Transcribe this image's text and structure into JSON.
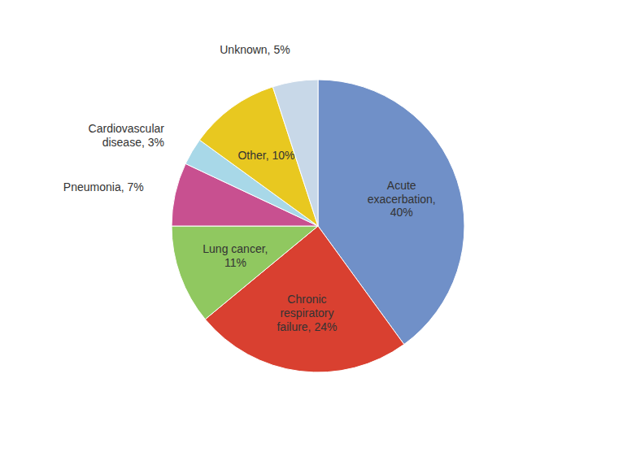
{
  "chart_data": {
    "type": "pie",
    "categories": [
      "Acute\nexacerbation,\n40%",
      "Chronic\nrespiratory\nfailure, 24%",
      "Lung cancer,\n11%",
      "Pneumonia, 7%",
      "Cardiovascular\ndisease, 3%",
      "Other, 10%",
      "Unknown, 5%"
    ],
    "values": [
      40,
      24,
      11,
      7,
      3,
      10,
      5
    ],
    "colors": [
      "#7090c8",
      "#d94030",
      "#90c860",
      "#c85090",
      "#a8d8e8",
      "#e8c820",
      "#c8d8e8"
    ]
  }
}
